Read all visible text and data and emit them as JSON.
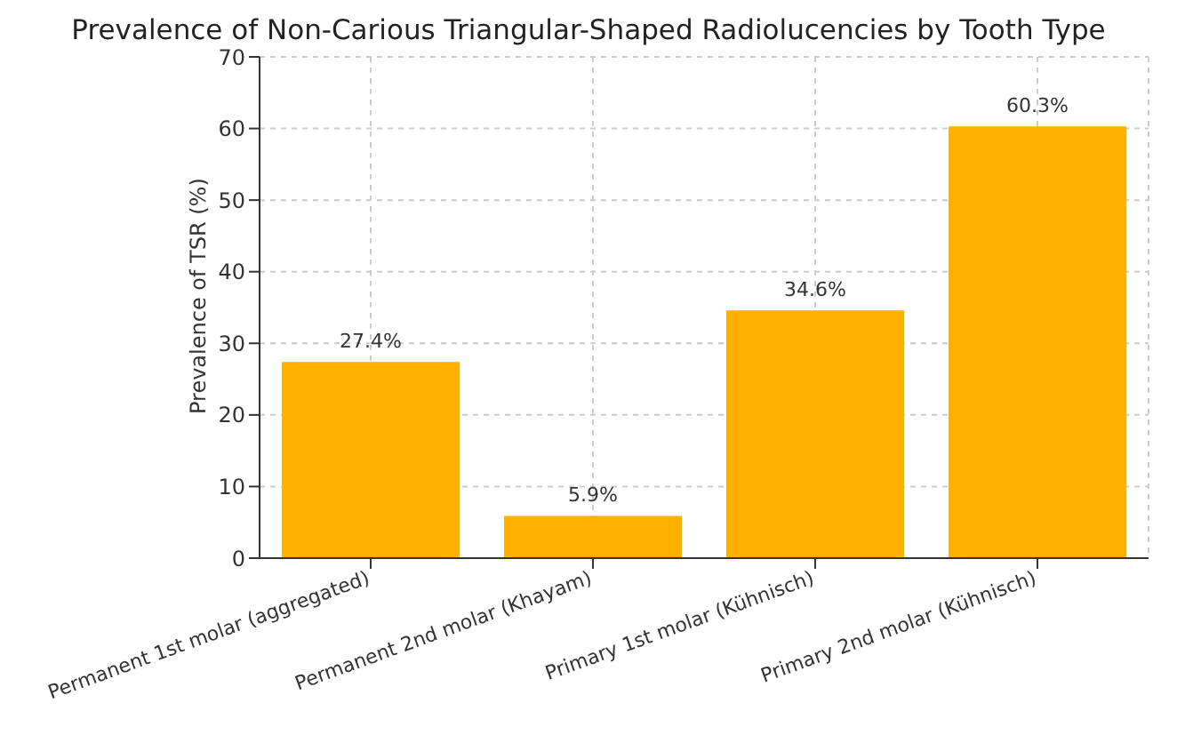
{
  "chart_data": {
    "type": "bar",
    "title": "Prevalence of Non-Carious Triangular-Shaped Radiolucencies by Tooth Type",
    "ylabel": "Prevalence of TSR (%)",
    "categories": [
      "Permanent 1st molar (aggregated)",
      "Permanent 2nd molar (Khayam)",
      "Primary 1st molar (Kühnisch)",
      "Primary 2nd molar (Kühnisch)"
    ],
    "values": [
      27.4,
      5.9,
      34.6,
      60.3
    ],
    "value_labels": [
      "27.4%",
      "5.9%",
      "34.6%",
      "60.3%"
    ],
    "color": "#ffb000",
    "ylim": [
      0,
      70
    ],
    "yticks": [
      0,
      10,
      20,
      30,
      40,
      50,
      60,
      70
    ],
    "grid": true
  }
}
